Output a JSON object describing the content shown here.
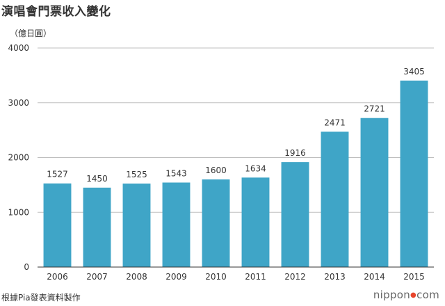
{
  "title": "演唱會門票收入變化",
  "source": "根據Pia發表資料製作",
  "brand": {
    "name_prefix": "nippon",
    "dot": "●",
    "name_suffix": "com"
  },
  "colors": {
    "bar": "#3fa5c7",
    "gridline": "#bfbfbf",
    "axis": "#333333",
    "text": "#333333"
  },
  "chart_data": {
    "type": "bar",
    "title": "演唱會門票收入變化",
    "ylabel": "（億日圓）",
    "xlabel": "",
    "categories": [
      "2006",
      "2007",
      "2008",
      "2009",
      "2010",
      "2011",
      "2012",
      "2013",
      "2014",
      "2015"
    ],
    "values": [
      1527,
      1450,
      1525,
      1543,
      1600,
      1634,
      1916,
      2471,
      2721,
      3405
    ],
    "ylim": [
      0,
      4000
    ],
    "yticks": [
      0,
      1000,
      2000,
      3000,
      4000
    ],
    "grid": true,
    "legend": "none",
    "data_labels": true
  }
}
